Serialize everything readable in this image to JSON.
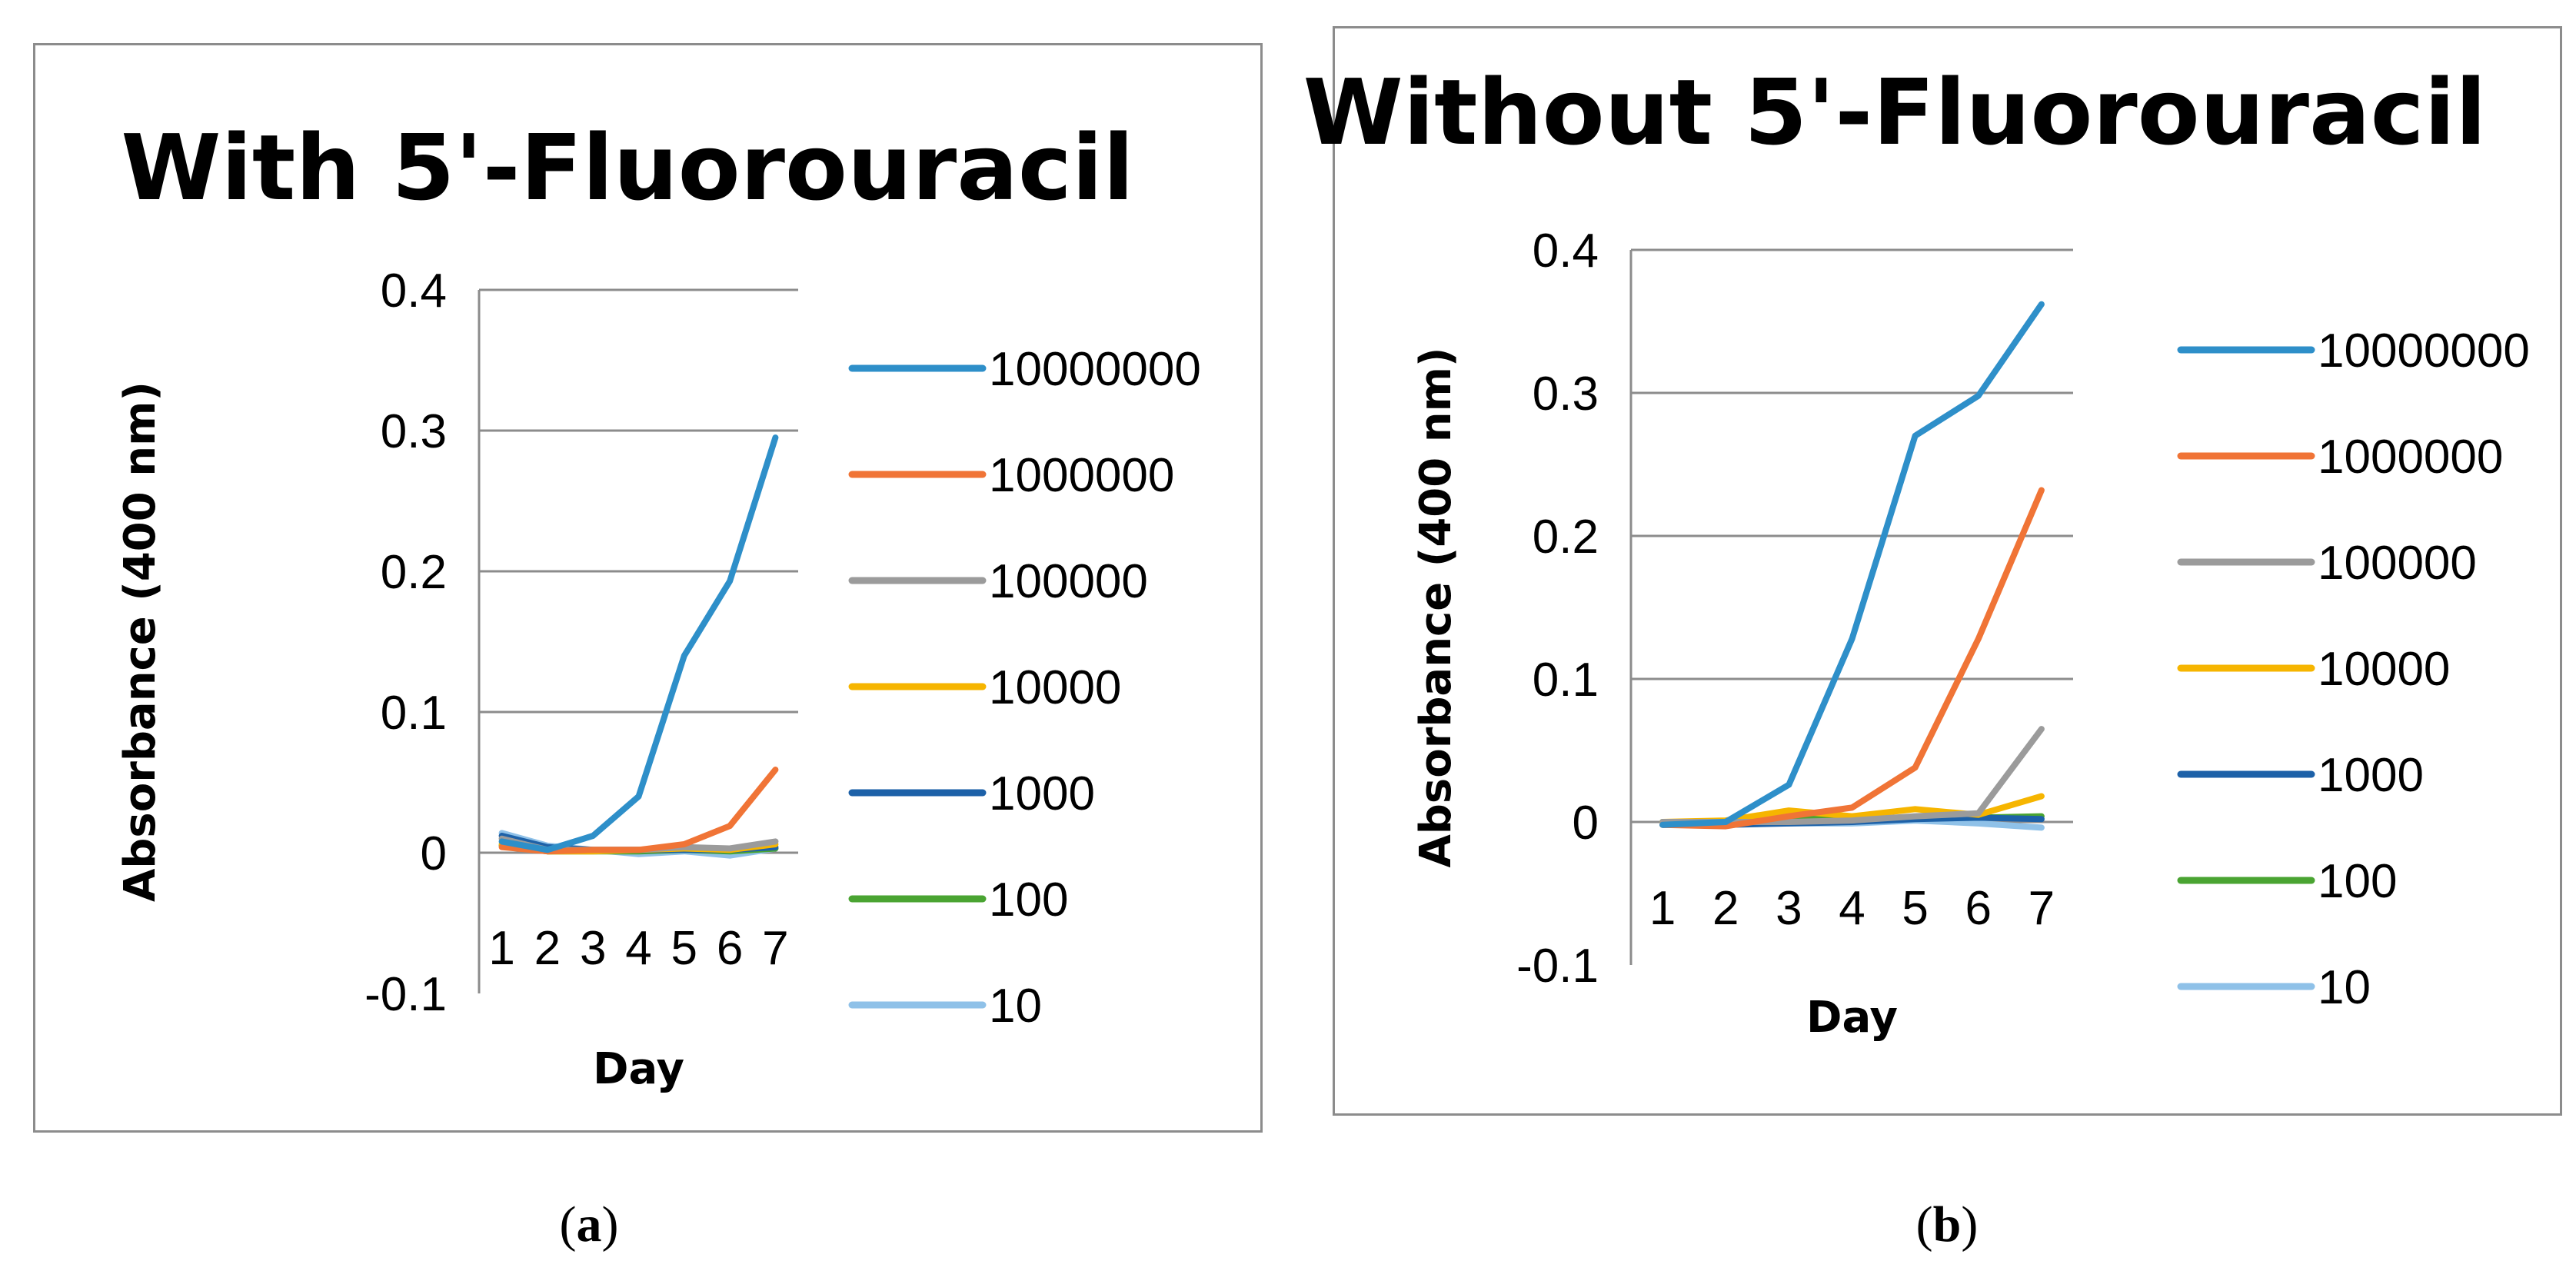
{
  "captions": {
    "a": {
      "open": "(",
      "letter": "a",
      "close": ")"
    },
    "b": {
      "open": "(",
      "letter": "b",
      "close": ")"
    }
  },
  "chart_data": [
    {
      "type": "line",
      "title": "With 5'-Fluorouracil",
      "xlabel": "Day",
      "ylabel": "Absorbance (400 nm)",
      "x": [
        1,
        2,
        3,
        4,
        5,
        6,
        7
      ],
      "ylim": [
        -0.1,
        0.4
      ],
      "yticks": [
        -0.1,
        0,
        0.1,
        0.2,
        0.3,
        0.4
      ],
      "ytick_labels": [
        "-0.1",
        "0",
        "0.1",
        "0.2",
        "0.3",
        "0.4"
      ],
      "grid": true,
      "legend": "right",
      "series": [
        {
          "name": "10000000",
          "color": "#2e8fc9",
          "values": [
            0.008,
            0.002,
            0.012,
            0.04,
            0.14,
            0.193,
            0.295
          ]
        },
        {
          "name": "1000000",
          "color": "#f07436",
          "values": [
            0.004,
            0.001,
            0.002,
            0.002,
            0.006,
            0.019,
            0.059
          ]
        },
        {
          "name": "100000",
          "color": "#9b9b9b",
          "values": [
            0.01,
            0.002,
            0.002,
            0.002,
            0.004,
            0.003,
            0.008
          ]
        },
        {
          "name": "10000",
          "color": "#f6b500",
          "values": [
            0.006,
            0.001,
            0.001,
            0.002,
            0.003,
            0.002,
            0.006
          ]
        },
        {
          "name": "1000",
          "color": "#1d61a8",
          "values": [
            0.012,
            0.004,
            0.002,
            0.002,
            0.002,
            0.002,
            0.004
          ]
        },
        {
          "name": "100",
          "color": "#4aa432",
          "values": [
            0.005,
            0.001,
            0.001,
            0.001,
            0.002,
            0.001,
            0.003
          ]
        },
        {
          "name": "10",
          "color": "#8fc1e8",
          "values": [
            0.014,
            0.005,
            0.002,
            -0.001,
            0.001,
            -0.002,
            0.003
          ]
        }
      ]
    },
    {
      "type": "line",
      "title": "Without 5'-Fluorouracil",
      "xlabel": "Day",
      "ylabel": "Absorbance (400 nm)",
      "x": [
        1,
        2,
        3,
        4,
        5,
        6,
        7
      ],
      "ylim": [
        -0.1,
        0.4
      ],
      "yticks": [
        -0.1,
        0,
        0.1,
        0.2,
        0.3,
        0.4
      ],
      "ytick_labels": [
        "-0.1",
        "0",
        "0.1",
        "0.2",
        "0.3",
        "0.4"
      ],
      "grid": true,
      "legend": "right",
      "series": [
        {
          "name": "10000000",
          "color": "#2e8fc9",
          "values": [
            -0.002,
            0.0,
            0.026,
            0.128,
            0.27,
            0.298,
            0.362
          ]
        },
        {
          "name": "1000000",
          "color": "#f07436",
          "values": [
            -0.002,
            -0.003,
            0.004,
            0.01,
            0.038,
            0.128,
            0.232
          ]
        },
        {
          "name": "100000",
          "color": "#9b9b9b",
          "values": [
            0.0,
            0.0,
            0.0,
            0.001,
            0.004,
            0.006,
            0.065
          ]
        },
        {
          "name": "10000",
          "color": "#f6b500",
          "values": [
            0.0,
            0.001,
            0.008,
            0.004,
            0.009,
            0.005,
            0.018
          ]
        },
        {
          "name": "1000",
          "color": "#1d61a8",
          "values": [
            -0.002,
            -0.002,
            -0.001,
            0.0,
            0.002,
            0.003,
            0.002
          ]
        },
        {
          "name": "100",
          "color": "#4aa432",
          "values": [
            0.0,
            0.0,
            0.003,
            0.002,
            0.003,
            0.003,
            0.004
          ]
        },
        {
          "name": "10",
          "color": "#8fc1e8",
          "values": [
            0.0,
            0.0,
            -0.001,
            -0.001,
            0.001,
            -0.001,
            -0.004
          ]
        }
      ]
    }
  ]
}
